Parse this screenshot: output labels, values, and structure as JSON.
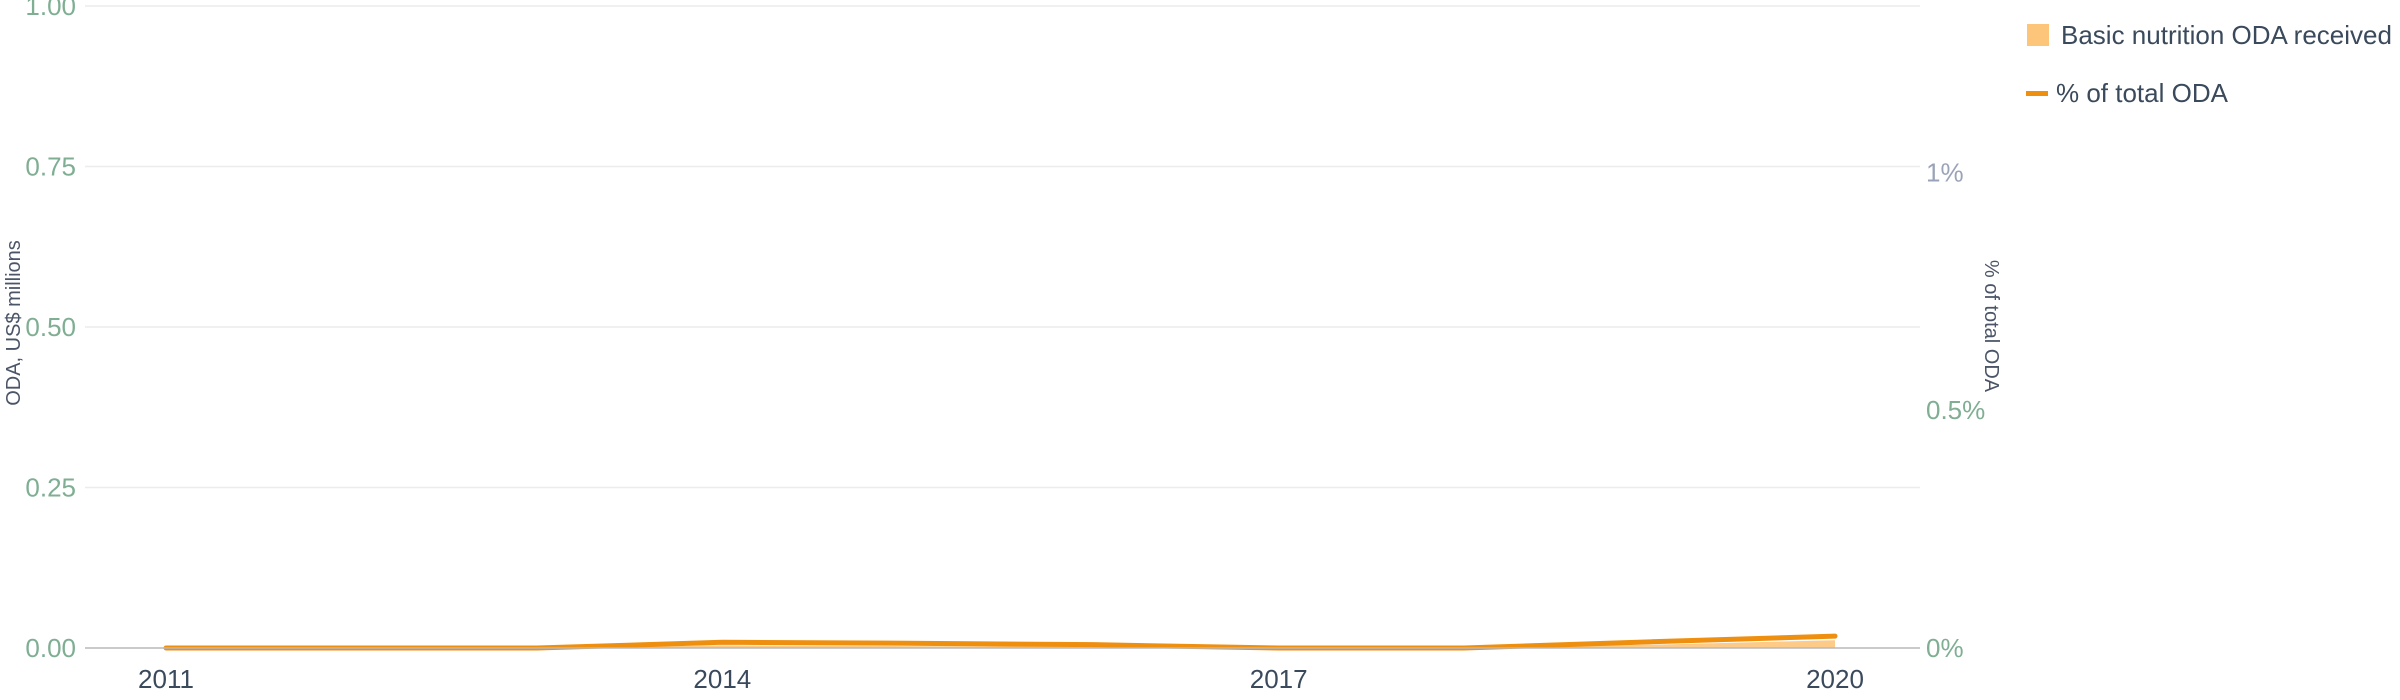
{
  "chart_data": {
    "type": "area",
    "x": [
      "2011",
      "2012",
      "2013",
      "2014",
      "2015",
      "2016",
      "2017",
      "2018",
      "2019",
      "2020"
    ],
    "x_tick_labels": [
      "2011",
      "2014",
      "2017",
      "2020"
    ],
    "ylabel": "ODA, US$ millions",
    "y2label": "% of total ODA",
    "ylim": [
      0,
      1
    ],
    "y_tick_labels": [
      "0.00",
      "0.25",
      "0.50",
      "0.75",
      "1.00"
    ],
    "y2lim": [
      0,
      1.35
    ],
    "y2_tick_labels": [
      "0%",
      "0.5%",
      "1%"
    ],
    "grid": true,
    "legend_position": "top-right",
    "series": [
      {
        "name": "Basic nutrition ODA received",
        "kind": "area",
        "axis": "left",
        "color": "#fdc57a",
        "values": [
          0,
          0,
          0,
          0.004,
          0.003,
          0.002,
          0,
          0,
          0.005,
          0.012
        ]
      },
      {
        "name": "% of total ODA",
        "kind": "line",
        "axis": "right",
        "color": "#ee8f10",
        "values": [
          0,
          0,
          0,
          0.012,
          0.01,
          0.007,
          0,
          0,
          0.013,
          0.025
        ]
      }
    ]
  }
}
